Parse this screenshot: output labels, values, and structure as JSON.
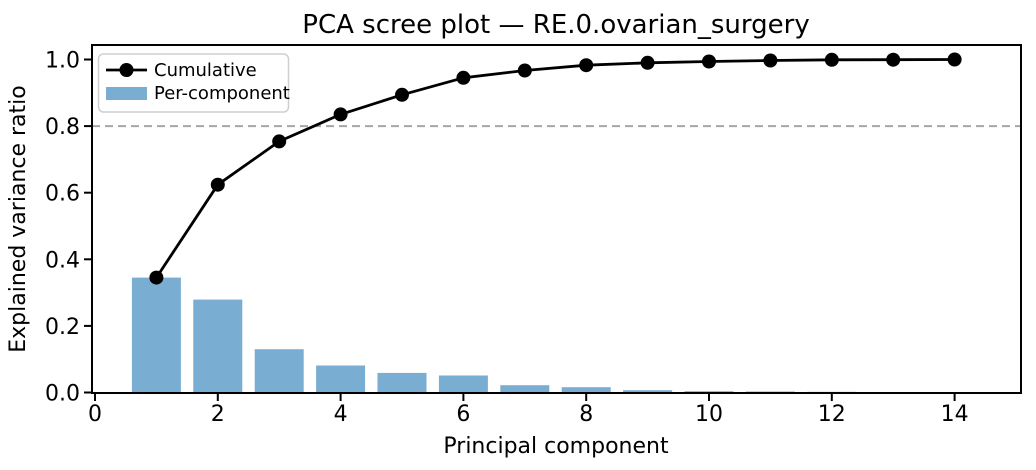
{
  "chart_data": {
    "type": "combo-bar-line",
    "title": "PCA scree plot — RE.0.ovarian_surgery",
    "xlabel": "Principal component",
    "ylabel": "Explained variance ratio",
    "x": [
      1,
      2,
      3,
      4,
      5,
      6,
      7,
      8,
      9,
      10,
      11,
      12,
      13,
      14
    ],
    "series": [
      {
        "name": "Cumulative",
        "type": "line",
        "color": "#000000",
        "marker": "circle",
        "values": [
          0.345,
          0.624,
          0.754,
          0.835,
          0.894,
          0.945,
          0.967,
          0.983,
          0.99,
          0.994,
          0.997,
          0.999,
          0.9995,
          1.0
        ]
      },
      {
        "name": "Per-component",
        "type": "bar",
        "color": "#79add2",
        "values": [
          0.345,
          0.279,
          0.13,
          0.081,
          0.059,
          0.051,
          0.022,
          0.016,
          0.007,
          0.004,
          0.003,
          0.002,
          0.0005,
          0.0005
        ]
      }
    ],
    "threshold_line": {
      "y": 0.8,
      "style": "dashed",
      "color": "#a6a6a6"
    },
    "xticks": [
      0,
      2,
      4,
      6,
      8,
      10,
      12,
      14
    ],
    "yticks": [
      0.0,
      0.2,
      0.4,
      0.6,
      0.8,
      1.0
    ],
    "xlim": [
      -0.05,
      15.08
    ],
    "ylim": [
      0,
      1.044
    ],
    "grid": false,
    "legend_position": "upper left",
    "legend": {
      "items": [
        {
          "label": "Cumulative",
          "swatch": "line-marker"
        },
        {
          "label": "Per-component",
          "swatch": "patch"
        }
      ]
    }
  }
}
